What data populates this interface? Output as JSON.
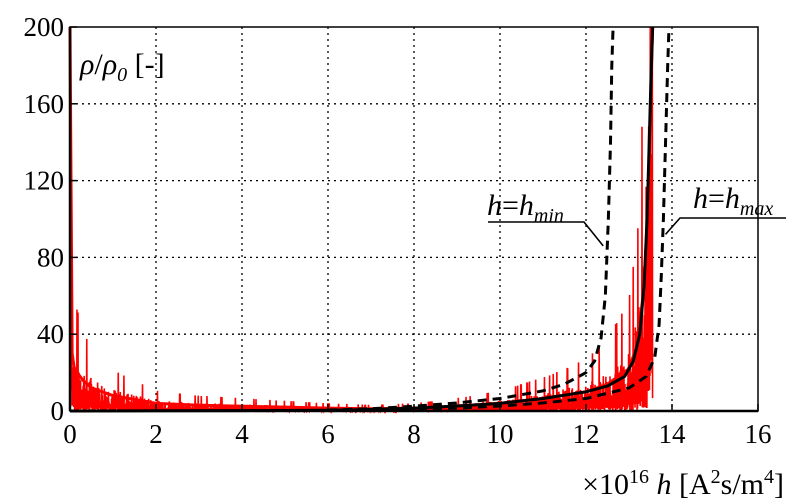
{
  "chart_data": {
    "type": "line",
    "ylabel": {
      "parts": [
        {
          "t": "ρ",
          "italic": true,
          "sub": false
        },
        {
          "t": "/",
          "italic": false,
          "sub": false
        },
        {
          "t": "ρ",
          "italic": true,
          "sub": false
        },
        {
          "t": "0",
          "italic": true,
          "sub": true
        },
        {
          "t": " [-]",
          "italic": false,
          "sub": false
        }
      ]
    },
    "xlabel": {
      "parts": [
        {
          "t": "×10",
          "italic": false,
          "sup": false
        },
        {
          "t": "16",
          "italic": false,
          "sup": true
        },
        {
          "t": " h",
          "italic": true,
          "sup": false
        },
        {
          "t": " [A",
          "italic": false,
          "sup": false
        },
        {
          "t": "2",
          "italic": false,
          "sup": true
        },
        {
          "t": "s/m",
          "italic": false,
          "sup": false
        },
        {
          "t": "4",
          "italic": false,
          "sup": true
        },
        {
          "t": "]",
          "italic": false,
          "sup": false
        }
      ]
    },
    "xlim": [
      0,
      16
    ],
    "ylim": [
      0,
      200
    ],
    "xticks": [
      "0",
      "2",
      "4",
      "6",
      "8",
      "10",
      "12",
      "14",
      "16"
    ],
    "yticks": [
      "0",
      "40",
      "80",
      "120",
      "160",
      "200"
    ],
    "grid": true,
    "annotations": [
      {
        "id": "hmin",
        "parts": [
          {
            "t": "h",
            "italic": true
          },
          {
            "t": "=",
            "italic": false
          },
          {
            "t": "h",
            "italic": true
          },
          {
            "t": "min",
            "italic": true,
            "sub": true
          }
        ],
        "points_to_x": 12.4,
        "points_to_y": 86
      },
      {
        "id": "hmax",
        "parts": [
          {
            "t": "h",
            "italic": true
          },
          {
            "t": "=",
            "italic": false
          },
          {
            "t": "h",
            "italic": true
          },
          {
            "t": "max",
            "italic": true,
            "sub": true
          }
        ],
        "points_to_x": 13.85,
        "points_to_y": 92
      }
    ],
    "series": [
      {
        "style": "solid",
        "color": "#000000",
        "x": [
          0,
          2,
          4,
          6,
          7,
          8,
          9,
          10,
          11,
          12,
          12.5,
          12.9,
          13.1,
          13.25,
          13.35,
          13.42,
          13.47,
          13.52,
          13.55
        ],
        "y": [
          0,
          0.1,
          0.2,
          0.4,
          0.8,
          1.5,
          2.6,
          4,
          6.5,
          10,
          13,
          18,
          26,
          40,
          65,
          100,
          140,
          180,
          200
        ]
      },
      {
        "style": "dashed",
        "color": "#000000",
        "x": [
          6,
          7,
          8,
          9,
          10,
          11,
          11.5,
          12,
          12.2,
          12.35,
          12.45,
          12.52,
          12.57,
          12.6,
          12.63
        ],
        "y": [
          0.5,
          1.2,
          2.5,
          4.2,
          6.5,
          10.5,
          14,
          20,
          26,
          38,
          60,
          100,
          140,
          180,
          200
        ]
      },
      {
        "style": "dashed",
        "color": "#000000",
        "x": [
          6,
          8,
          9,
          10,
          11,
          12,
          13,
          13.4,
          13.6,
          13.7,
          13.75,
          13.8,
          13.85,
          13.9,
          13.93
        ],
        "y": [
          0.2,
          0.8,
          1.5,
          2.6,
          4.2,
          6.5,
          12,
          18,
          28,
          45,
          70,
          100,
          140,
          180,
          200
        ]
      },
      {
        "style": "noisy",
        "color": "#ff0000",
        "x": [
          0,
          0.05,
          0.1,
          0.3,
          0.5,
          1,
          2,
          3,
          4,
          5,
          6,
          7,
          8,
          9,
          10,
          11,
          12,
          12.5,
          13,
          13.2,
          13.35,
          13.45,
          13.5,
          13.55
        ],
        "y": [
          200,
          30,
          22,
          16,
          12,
          8,
          4,
          3,
          2.5,
          2,
          1.5,
          1.2,
          1.5,
          2.5,
          4,
          6.5,
          10,
          14,
          22,
          35,
          65,
          110,
          160,
          200
        ]
      }
    ]
  }
}
